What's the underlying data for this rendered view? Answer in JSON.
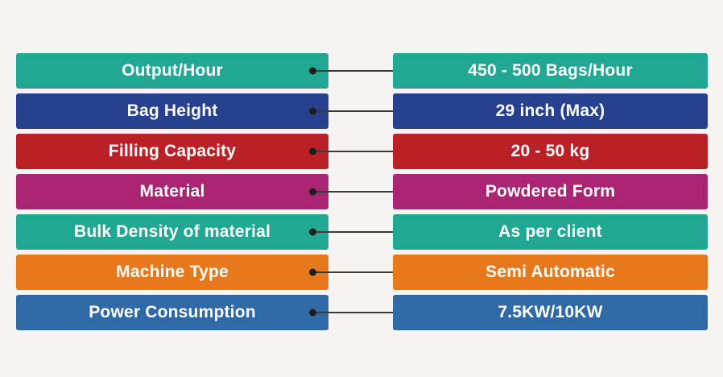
{
  "background_color": "#f5f4f2",
  "text_color": "#ffffff",
  "connector": {
    "line_color": "#3a3a3a",
    "dot_color": "#1d1d1d"
  },
  "spec_rows": [
    {
      "label": "Output/Hour",
      "value": "450 - 500 Bags/Hour",
      "color": "#21a893"
    },
    {
      "label": "Bag Height",
      "value": "29 inch (Max)",
      "color": "#27418f"
    },
    {
      "label": "Filling Capacity",
      "value": "20 - 50 kg",
      "color": "#bb2026"
    },
    {
      "label": "Material",
      "value": "Powdered Form",
      "color": "#a92471"
    },
    {
      "label": "Bulk Density of material",
      "value": "As per client",
      "color": "#21a893"
    },
    {
      "label": "Machine Type",
      "value": "Semi Automatic",
      "color": "#e7781e"
    },
    {
      "label": "Power Consumption",
      "value": "7.5KW/10KW",
      "color": "#2f6aa6"
    }
  ]
}
